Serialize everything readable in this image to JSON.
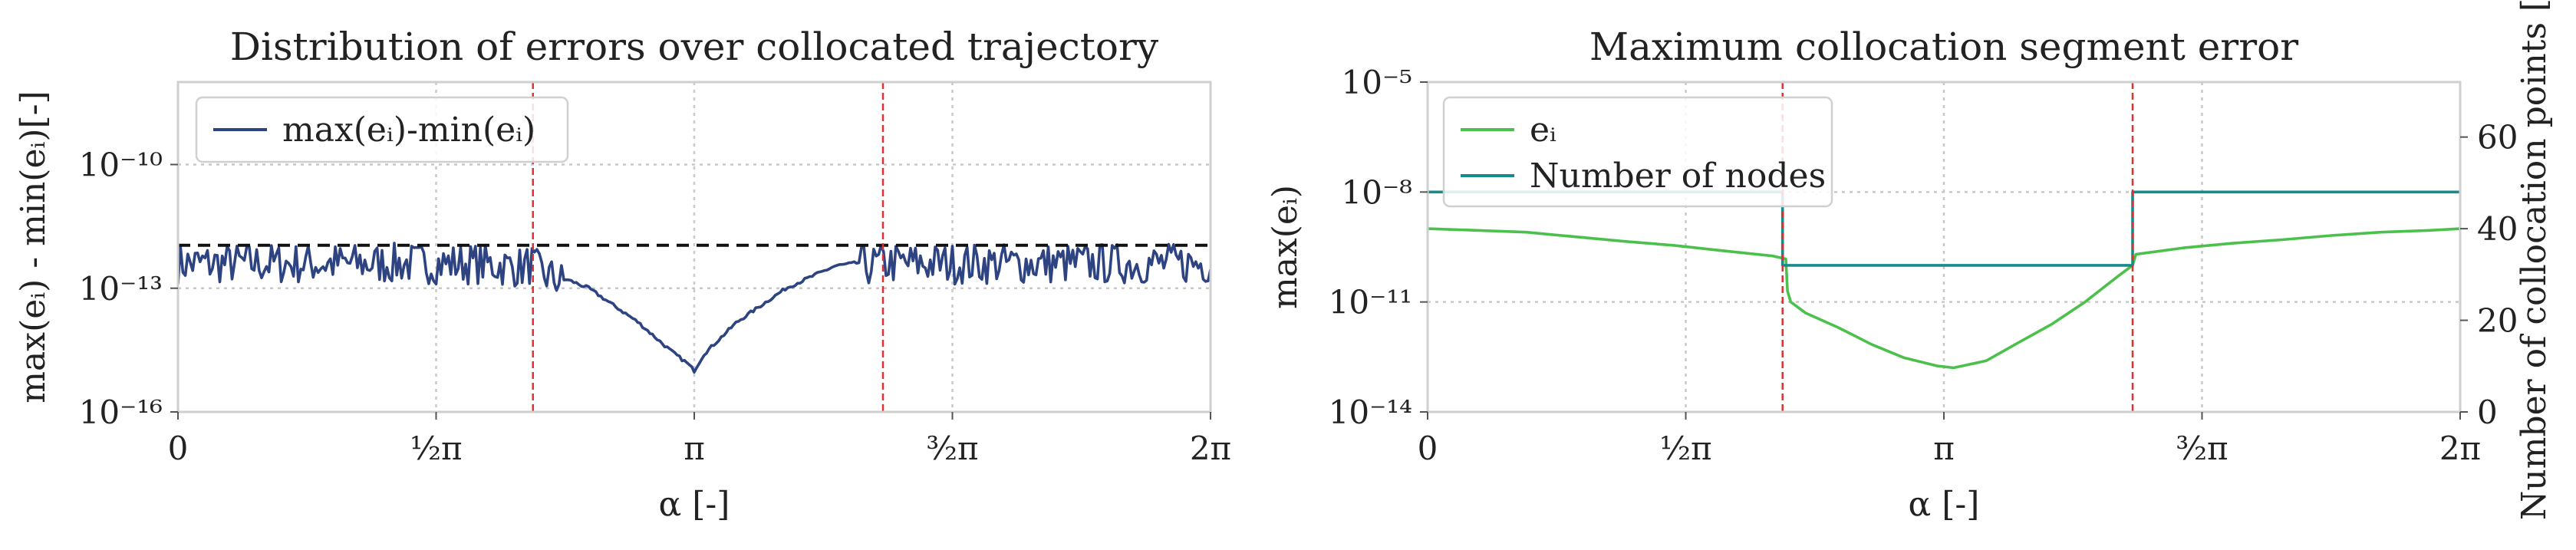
{
  "chart_data": [
    {
      "type": "line",
      "title": "Distribution of errors over collocated trajectory",
      "xlabel": "α [-]",
      "ylabel": "max(eᵢ) - min(eᵢ)[-]",
      "yscale": "log",
      "xlim": [
        0,
        6.2832
      ],
      "ylim": [
        1e-16,
        1e-08
      ],
      "x_ticks": [
        {
          "value": 0,
          "label": "0"
        },
        {
          "value": 1.5708,
          "label": "½π"
        },
        {
          "value": 3.1416,
          "label": "π"
        },
        {
          "value": 4.7124,
          "label": "³⁄₂π"
        },
        {
          "value": 6.2832,
          "label": "2π"
        }
      ],
      "y_ticks": [
        {
          "value": 1e-10,
          "label": "10⁻¹⁰"
        },
        {
          "value": 1e-13,
          "label": "10⁻¹³"
        },
        {
          "value": 1e-16,
          "label": "10⁻¹⁶"
        }
      ],
      "grid": true,
      "legend_position": "top-left",
      "series": [
        {
          "name": "max(eᵢ)-min(eᵢ)",
          "color": "#2e4482",
          "x": [
            0.0,
            0.3,
            0.6,
            0.9,
            1.2,
            1.5,
            1.8,
            2.1,
            2.15,
            2.2,
            2.5,
            2.8,
            3.0,
            3.1,
            3.1416,
            3.2,
            3.4,
            3.7,
            4.0,
            4.3,
            4.25,
            4.4,
            4.6,
            4.8,
            5.1,
            5.4,
            5.7,
            6.0,
            6.2832
          ],
          "y": [
            5e-13,
            5e-13,
            5e-13,
            5e-13,
            5e-13,
            5e-13,
            5e-13,
            4e-13,
            5e-13,
            3e-13,
            1e-13,
            1.5e-14,
            3e-15,
            1.5e-15,
            1e-15,
            2.5e-15,
            1.5e-14,
            1e-13,
            3.5e-13,
            5e-13,
            5e-13,
            5e-13,
            5e-13,
            5e-13,
            5e-13,
            5e-13,
            5e-13,
            5e-13,
            5e-13
          ]
        },
        {
          "name": "",
          "style": "dashed",
          "color": "#111111",
          "x": [
            0,
            6.2832
          ],
          "y": [
            1.1e-12,
            1.1e-12
          ]
        }
      ],
      "vlines": [
        2.16,
        4.29
      ],
      "vline_color": "#e03030"
    },
    {
      "type": "line",
      "title": "Maximum collocation segment error",
      "xlabel": "α [-]",
      "ylabel": "max(eᵢ)",
      "ylabel_right": "Number of collocation points [-]",
      "yscale": "log",
      "xlim": [
        0,
        6.2832
      ],
      "ylim": [
        1e-14,
        1e-05
      ],
      "ylim_right": [
        0,
        72
      ],
      "x_ticks": [
        {
          "value": 0,
          "label": "0"
        },
        {
          "value": 1.5708,
          "label": "½π"
        },
        {
          "value": 3.1416,
          "label": "π"
        },
        {
          "value": 4.7124,
          "label": "³⁄₂π"
        },
        {
          "value": 6.2832,
          "label": "2π"
        }
      ],
      "y_ticks": [
        {
          "value": 1e-05,
          "label": "10⁻⁵"
        },
        {
          "value": 1e-08,
          "label": "10⁻⁸"
        },
        {
          "value": 1e-11,
          "label": "10⁻¹¹"
        },
        {
          "value": 1e-14,
          "label": "10⁻¹⁴"
        }
      ],
      "y_ticks_right": [
        {
          "value": 0,
          "label": "0"
        },
        {
          "value": 20,
          "label": "20"
        },
        {
          "value": 40,
          "label": "40"
        },
        {
          "value": 60,
          "label": "60"
        }
      ],
      "left_tick_color": "#4cc04c",
      "right_tick_color": "#178a8a",
      "grid": true,
      "legend_position": "top-left",
      "series": [
        {
          "name": "eᵢ",
          "axis": "left",
          "color": "#4cc04c",
          "x": [
            0.0,
            0.3,
            0.6,
            0.9,
            1.2,
            1.5,
            1.8,
            2.1,
            2.18,
            2.19,
            2.21,
            2.3,
            2.5,
            2.7,
            2.9,
            3.1,
            3.2,
            3.4,
            3.6,
            3.8,
            4.0,
            4.2,
            4.29,
            4.31,
            4.6,
            4.9,
            5.2,
            5.5,
            5.8,
            6.1,
            6.2832
          ],
          "y": [
            1e-09,
            9e-10,
            8e-10,
            6e-10,
            4.5e-10,
            3.5e-10,
            2.5e-10,
            1.8e-10,
            1.5e-10,
            2e-11,
            1e-11,
            5e-12,
            2e-12,
            7e-13,
            3e-13,
            1.8e-13,
            1.6e-13,
            2.5e-13,
            8e-13,
            2.5e-12,
            1e-11,
            5e-11,
            1e-10,
            2e-10,
            3e-10,
            4e-10,
            5e-10,
            6.5e-10,
            8e-10,
            9e-10,
            1e-09
          ]
        },
        {
          "name": "Number of nodes",
          "axis": "right",
          "color": "#178a8a",
          "step": true,
          "x": [
            0,
            2.16,
            2.16,
            4.29,
            4.29,
            6.2832
          ],
          "y": [
            48,
            48,
            32,
            32,
            48,
            48
          ]
        }
      ],
      "vlines": [
        2.16,
        4.29
      ],
      "vline_color": "#e03030"
    }
  ]
}
